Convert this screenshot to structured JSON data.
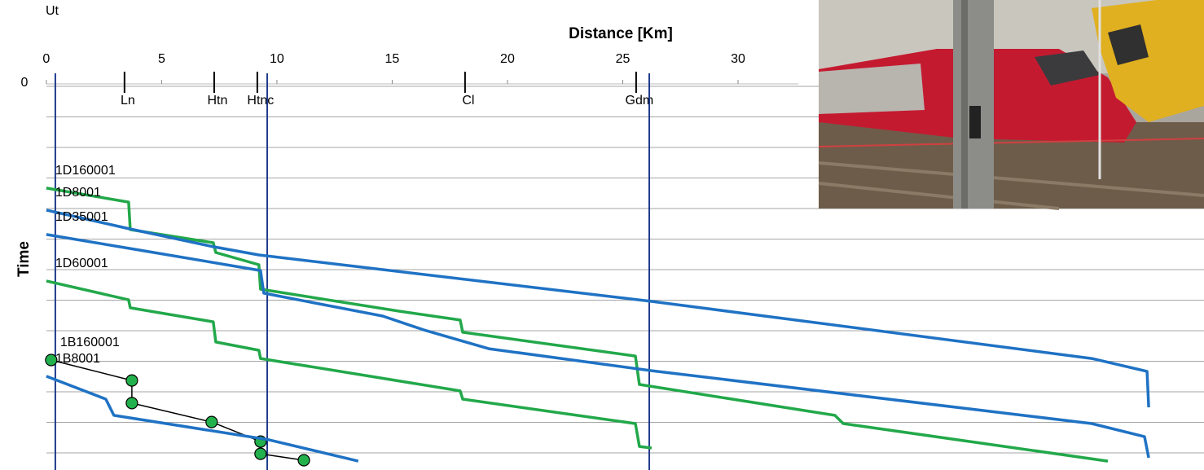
{
  "chart_data": {
    "type": "line",
    "xlabel": "Distance [Km]",
    "ylabel": "Time",
    "origin_label": "Ut",
    "xlim": [
      -2.01,
      50.21
    ],
    "xticks": [
      0,
      5,
      10,
      15,
      20,
      25,
      30
    ],
    "ylim": [
      0,
      12.56
    ],
    "y_inverted": true,
    "yticks": [
      0
    ],
    "ygrid": [
      0,
      1,
      2,
      3,
      4,
      5,
      6,
      7,
      8,
      9,
      10,
      11,
      12
    ],
    "grid_color": "#a6a6a6",
    "stations": [
      {
        "name": "Ln",
        "km": 3.39
      },
      {
        "name": "Htn",
        "km": 7.28
      },
      {
        "name": "Htnc",
        "km": 9.15
      },
      {
        "name": "Cl",
        "km": 18.16
      },
      {
        "name": "Gdm",
        "km": 25.58
      }
    ],
    "reference_lines": [
      0.39,
      9.58,
      26.15
    ],
    "reference_color": "#1f3b8c",
    "series": [
      {
        "name": "1D160001",
        "color": "#22a84a",
        "x": [
          0,
          3.57,
          3.64,
          7.24,
          7.35,
          9.22,
          9.29,
          15.3,
          17.95,
          18.06,
          25.55,
          25.72,
          34.2,
          34.56,
          46.04
        ],
        "values": [
          3.33,
          3.79,
          4.69,
          5.12,
          5.44,
          5.84,
          6.64,
          7.36,
          7.65,
          8.05,
          8.83,
          9.76,
          10.77,
          11.04,
          12.27
        ]
      },
      {
        "name": "1D8001",
        "color": "#1f72c4",
        "x": [
          0,
          3.46,
          7.24,
          9.22,
          26.25,
          45.34,
          47.74,
          47.81
        ],
        "values": [
          4.05,
          4.64,
          5.25,
          5.52,
          7.04,
          8.91,
          9.33,
          10.51
        ]
      },
      {
        "name": "1D35001",
        "color": "#1f72c4",
        "x": [
          0,
          3.64,
          9.29,
          9.43,
          14.59,
          16.36,
          19.19,
          26.25,
          45.34,
          47.63,
          47.81
        ],
        "values": [
          4.85,
          5.31,
          6.03,
          6.77,
          7.52,
          7.97,
          8.59,
          9.31,
          11.04,
          11.47,
          12.16
        ]
      },
      {
        "name": "1D60001",
        "color": "#22a84a",
        "x": [
          0,
          3.57,
          3.64,
          7.24,
          7.35,
          9.22,
          9.29,
          17.95,
          18.06,
          25.55,
          25.72,
          26.25
        ],
        "values": [
          6.37,
          6.99,
          7.25,
          7.71,
          8.37,
          8.64,
          8.91,
          9.97,
          10.24,
          11.04,
          11.79,
          11.84
        ]
      },
      {
        "name": "1B160001",
        "color": "#000000",
        "marker_color": "#22b14c",
        "x": [
          0.21,
          3.71,
          3.71,
          7.17,
          9.29,
          9.29,
          11.17
        ],
        "values": [
          8.96,
          9.63,
          10.37,
          10.99,
          11.63,
          12.03,
          12.24
        ]
      },
      {
        "name": "1B8001",
        "color": "#1f72c4",
        "x": [
          0,
          2.58,
          2.93,
          9.65,
          13.53
        ],
        "values": [
          9.49,
          10.24,
          10.77,
          11.57,
          12.27
        ]
      }
    ]
  }
}
